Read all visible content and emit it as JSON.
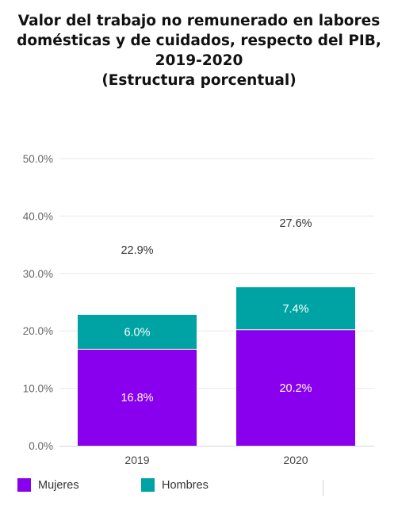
{
  "chart_data": {
    "type": "bar",
    "stacked": true,
    "title": [
      "Valor del trabajo no remunerado en labores",
      "domésticas y de cuidados, respecto del  PIB,",
      "2019-2020",
      "(Estructura porcentual)"
    ],
    "categories": [
      "2019",
      "2020"
    ],
    "series": [
      {
        "name": "Mujeres",
        "color": "#8800ee",
        "values": [
          16.8,
          20.2
        ],
        "labels": [
          "16.8%",
          "20.2%"
        ]
      },
      {
        "name": "Hombres",
        "color": "#00a3a3",
        "values": [
          6.0,
          7.4
        ],
        "labels": [
          "6.0%",
          "7.4%"
        ]
      }
    ],
    "totals": [
      22.9,
      27.6
    ],
    "total_labels": [
      "22.9%",
      "27.6%"
    ],
    "yticks": [
      0,
      10,
      20,
      30,
      40,
      50
    ],
    "ytick_labels": [
      "0.0%",
      "10.0%",
      "20.0%",
      "30.0%",
      "40.0%",
      "50.0%"
    ],
    "ylim": [
      0,
      52
    ],
    "grid": true,
    "legend_position": "bottom-left"
  }
}
